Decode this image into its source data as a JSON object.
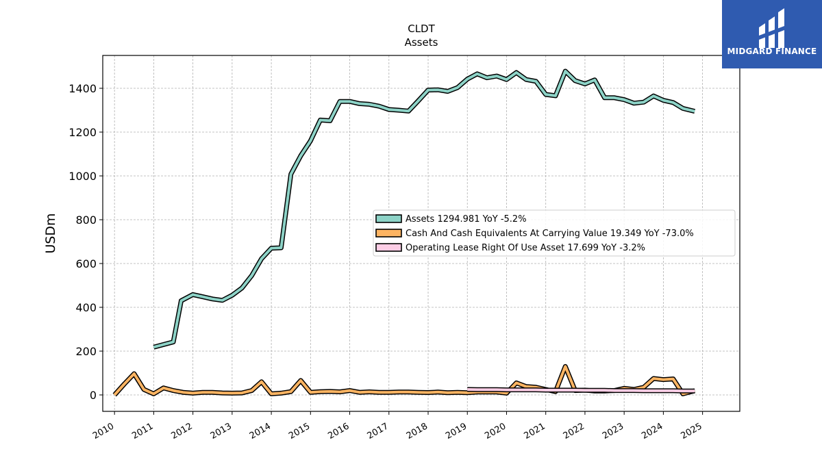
{
  "brand": {
    "name": "MIDGARD FINANCE",
    "color": "#2f5bb0"
  },
  "chart_data": {
    "type": "line",
    "title": "CLDT",
    "subtitle": "Assets",
    "ylabel": "USDm",
    "xlabel": "",
    "ylim": [
      -75,
      1550
    ],
    "xlim": [
      2009.7,
      2025.95
    ],
    "yticks": [
      0,
      200,
      400,
      600,
      800,
      1000,
      1200,
      1400
    ],
    "xticks": [
      "2010",
      "2011",
      "2012",
      "2013",
      "2014",
      "2015",
      "2016",
      "2017",
      "2018",
      "2019",
      "2020",
      "2021",
      "2022",
      "2023",
      "2024",
      "2025"
    ],
    "grid": true,
    "legend_position": "center-right",
    "series": [
      {
        "name": "Assets",
        "legend": "Assets  1294.981 YoY -5.2%",
        "color": "#8dd3c7",
        "x": [
          2011.0,
          2011.5,
          2011.7,
          2012.0,
          2012.25,
          2012.5,
          2012.75,
          2013.0,
          2013.25,
          2013.5,
          2013.75,
          2014.0,
          2014.25,
          2014.5,
          2014.75,
          2015.0,
          2015.25,
          2015.5,
          2015.75,
          2016.0,
          2016.25,
          2016.5,
          2016.75,
          2017.0,
          2017.25,
          2017.5,
          2017.75,
          2018.0,
          2018.25,
          2018.5,
          2018.75,
          2019.0,
          2019.25,
          2019.5,
          2019.75,
          2020.0,
          2020.25,
          2020.5,
          2020.75,
          2021.0,
          2021.25,
          2021.5,
          2021.75,
          2022.0,
          2022.25,
          2022.5,
          2022.75,
          2023.0,
          2023.25,
          2023.5,
          2023.75,
          2024.0,
          2024.25,
          2024.5,
          2024.8
        ],
        "y": [
          218,
          242,
          430,
          458,
          448,
          438,
          432,
          455,
          488,
          545,
          622,
          670,
          672,
          1008,
          1092,
          1160,
          1255,
          1252,
          1340,
          1340,
          1330,
          1327,
          1318,
          1303,
          1300,
          1296,
          1343,
          1392,
          1393,
          1386,
          1403,
          1442,
          1466,
          1448,
          1456,
          1440,
          1472,
          1440,
          1432,
          1372,
          1366,
          1478,
          1435,
          1420,
          1438,
          1357,
          1357,
          1348,
          1332,
          1337,
          1365,
          1345,
          1335,
          1308,
          1295
        ]
      },
      {
        "name": "Cash And Cash Equivalents At Carrying Value",
        "legend": "Cash And Cash Equivalents At Carrying Value  19.349 YoY -73.0%",
        "color": "#fdb462",
        "x": [
          2010.0,
          2010.25,
          2010.5,
          2010.75,
          2011.0,
          2011.25,
          2011.5,
          2011.75,
          2012.0,
          2012.25,
          2012.5,
          2012.75,
          2013.0,
          2013.25,
          2013.5,
          2013.75,
          2014.0,
          2014.25,
          2014.5,
          2014.75,
          2015.0,
          2015.25,
          2015.5,
          2015.75,
          2016.0,
          2016.25,
          2016.5,
          2016.75,
          2017.0,
          2017.25,
          2017.5,
          2017.75,
          2018.0,
          2018.25,
          2018.5,
          2018.75,
          2019.0,
          2019.25,
          2019.5,
          2019.75,
          2020.0,
          2020.25,
          2020.5,
          2020.75,
          2021.0,
          2021.25,
          2021.5,
          2021.75,
          2022.0,
          2022.25,
          2022.5,
          2022.75,
          2023.0,
          2023.25,
          2023.5,
          2023.75,
          2024.0,
          2024.25,
          2024.5,
          2024.8
        ],
        "y": [
          0,
          50,
          97,
          25,
          5,
          32,
          20,
          12,
          8,
          12,
          12,
          9,
          8,
          9,
          20,
          60,
          5,
          8,
          15,
          66,
          12,
          15,
          16,
          14,
          20,
          12,
          14,
          12,
          12,
          13,
          13,
          12,
          11,
          13,
          10,
          12,
          10,
          13,
          13,
          13,
          8,
          55,
          38,
          35,
          25,
          15,
          130,
          20,
          22,
          18,
          18,
          20,
          30,
          25,
          35,
          75,
          70,
          73,
          5,
          19
        ]
      },
      {
        "name": "Operating Lease Right Of Use Asset",
        "legend": "Operating Lease Right Of Use Asset  17.699 YoY -3.2%",
        "color": "#fccde5",
        "x": [
          2019.0,
          2019.25,
          2019.5,
          2019.75,
          2020.0,
          2020.25,
          2020.5,
          2020.75,
          2021.0,
          2021.25,
          2021.5,
          2021.75,
          2022.0,
          2022.25,
          2022.5,
          2022.75,
          2023.0,
          2023.25,
          2023.5,
          2023.75,
          2024.0,
          2024.25,
          2024.5,
          2024.8
        ],
        "y": [
          25,
          24,
          24,
          24,
          23,
          23,
          23,
          23,
          22,
          22,
          22,
          22,
          21,
          21,
          21,
          20,
          20,
          20,
          19,
          19,
          19,
          19,
          18,
          18
        ]
      }
    ]
  }
}
